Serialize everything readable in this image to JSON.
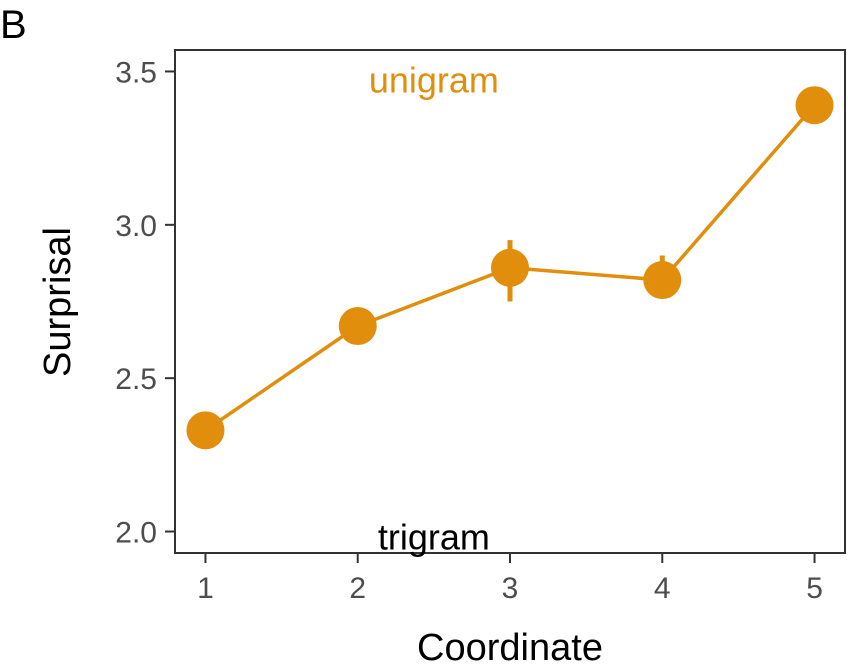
{
  "panel_label": "B",
  "colors": {
    "series": "#E08E0B",
    "axis": "#333333",
    "tick_text": "#4d4d4d",
    "annotation_secondary": "#000000"
  },
  "chart_data": {
    "type": "line",
    "title": "",
    "xlabel": "Coordinate",
    "ylabel": "Surprisal",
    "x": [
      1,
      2,
      3,
      4,
      5
    ],
    "xticks": [
      "1",
      "2",
      "3",
      "4",
      "5"
    ],
    "xlim": [
      0.8,
      5.2
    ],
    "ylim": [
      1.93,
      3.57
    ],
    "yticks": [
      "2.0",
      "2.5",
      "3.0",
      "3.5"
    ],
    "grid": false,
    "legend": "none",
    "series": [
      {
        "name": "unigram",
        "values": [
          2.33,
          2.67,
          2.86,
          2.82,
          3.39
        ],
        "error_low": [
          2.33,
          2.67,
          2.75,
          2.79,
          3.39
        ],
        "error_high": [
          2.33,
          2.67,
          2.95,
          2.9,
          3.39
        ]
      }
    ],
    "annotations": [
      {
        "text": "unigram",
        "x": 2.5,
        "y": 3.47,
        "color": "#E08E0B"
      },
      {
        "text": "trigram",
        "x": 2.5,
        "y": 1.98,
        "color": "#000000"
      }
    ]
  }
}
